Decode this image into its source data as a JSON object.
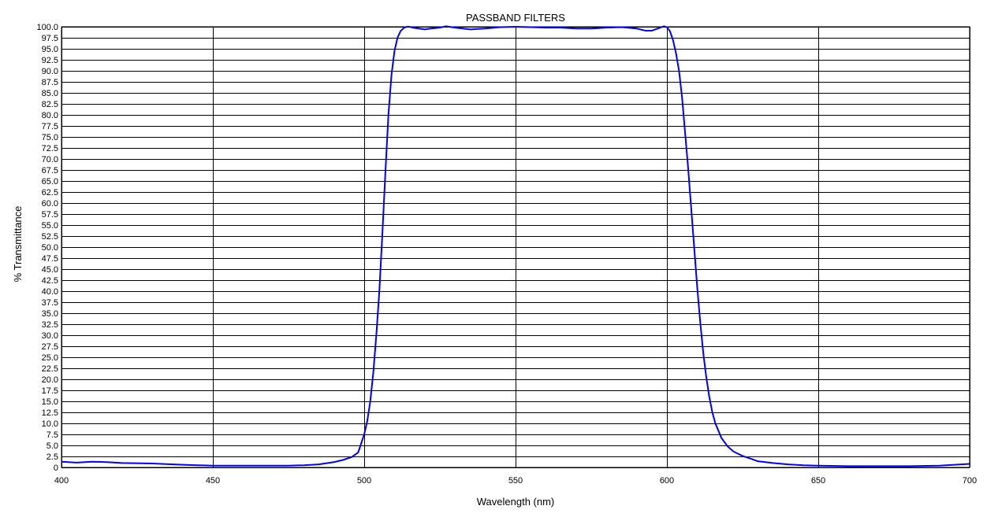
{
  "chart_data": {
    "type": "line",
    "title": "PASSBAND FILTERS",
    "xlabel": "Wavelength (nm)",
    "ylabel": "% Transmittance",
    "xlim": [
      400,
      700
    ],
    "ylim": [
      0,
      100
    ],
    "x_ticks": [
      "400",
      "450",
      "500",
      "550",
      "600",
      "650",
      "700"
    ],
    "x_tick_values": [
      400,
      450,
      500,
      550,
      600,
      650,
      700
    ],
    "y_ticks": [
      "0",
      "2.5",
      "5.0",
      "7.5",
      "10.0",
      "12.5",
      "15.0",
      "17.5",
      "20.0",
      "22.5",
      "25.0",
      "27.5",
      "30.0",
      "32.5",
      "35.0",
      "37.5",
      "40.0",
      "42.5",
      "45.0",
      "47.5",
      "50.0",
      "52.5",
      "55.0",
      "57.5",
      "60.0",
      "62.5",
      "65.0",
      "67.5",
      "70.0",
      "72.5",
      "75.0",
      "77.5",
      "80.0",
      "82.5",
      "85.0",
      "87.5",
      "90.0",
      "92.5",
      "95.0",
      "97.5",
      "100.0"
    ],
    "grid": true,
    "line_color": "#0000ff",
    "series": [
      {
        "x": [
          400,
          405,
          410,
          415,
          420,
          430,
          440,
          450,
          460,
          470,
          475,
          480,
          485,
          490,
          493,
          496,
          498,
          500,
          501,
          502,
          503,
          504,
          505,
          506,
          507,
          508,
          509,
          510,
          511,
          512,
          513,
          514,
          515,
          516,
          518,
          520,
          522,
          525,
          527,
          530,
          535,
          540,
          545,
          550,
          555,
          560,
          565,
          570,
          575,
          580,
          585,
          590,
          593,
          595,
          597,
          599,
          600,
          601,
          602,
          603,
          604,
          605,
          606,
          607,
          608,
          609,
          610,
          611,
          612,
          613,
          614,
          615,
          616,
          618,
          620,
          622,
          625,
          628,
          630,
          635,
          640,
          645,
          650,
          660,
          670,
          680,
          690,
          695,
          700
        ],
        "y": [
          1.3,
          1.1,
          1.3,
          1.2,
          1.0,
          0.9,
          0.6,
          0.4,
          0.4,
          0.4,
          0.4,
          0.5,
          0.7,
          1.2,
          1.7,
          2.4,
          3.4,
          7.5,
          10.5,
          15.0,
          21.5,
          30.0,
          40.0,
          53.0,
          67.0,
          80.0,
          89.0,
          94.5,
          97.5,
          99.0,
          99.7,
          100.0,
          100.0,
          99.8,
          99.6,
          99.4,
          99.6,
          99.8,
          100.1,
          99.8,
          99.4,
          99.6,
          99.9,
          100.0,
          99.9,
          99.8,
          99.8,
          99.6,
          99.6,
          99.8,
          99.9,
          99.6,
          99.1,
          99.1,
          99.6,
          100.1,
          99.9,
          99.0,
          97.0,
          94.0,
          90.0,
          84.0,
          76.0,
          68.0,
          59.0,
          50.0,
          41.0,
          33.0,
          26.0,
          20.5,
          16.0,
          12.5,
          10.0,
          6.7,
          4.8,
          3.6,
          2.6,
          1.9,
          1.4,
          1.0,
          0.7,
          0.5,
          0.4,
          0.3,
          0.3,
          0.3,
          0.4,
          0.6,
          0.8
        ]
      }
    ]
  }
}
